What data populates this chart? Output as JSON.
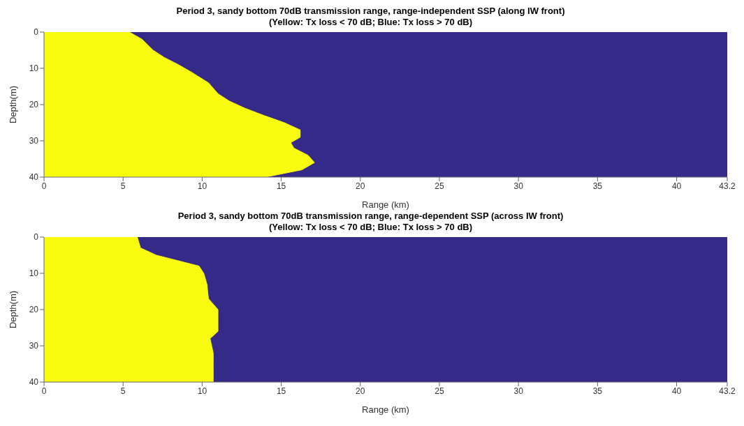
{
  "chart_data": [
    {
      "type": "area",
      "orientation": "horizontal",
      "title": "Period 3, sandy bottom 70dB transmission range, range-independent SSP (along IW front)",
      "subtitle": "(Yellow: Tx loss < 70 dB; Blue: Tx loss > 70 dB)",
      "xlabel": "Range (km)",
      "ylabel": "Depth(m)",
      "xlim": [
        0,
        43.2
      ],
      "xticks": [
        0,
        5,
        10,
        15,
        20,
        25,
        30,
        35,
        40,
        43.2
      ],
      "ylim": [
        40,
        0
      ],
      "yticks": [
        0,
        10,
        20,
        30,
        40
      ],
      "grid": false,
      "legend": false,
      "bands": [
        {
          "axis": "x",
          "from": 0,
          "to": 43.2,
          "color": "#352a87"
        }
      ],
      "series": [
        {
          "color": "#f9fb0e",
          "x": [
            0,
            2,
            5,
            7,
            9,
            11,
            14,
            17,
            19,
            21,
            23,
            25,
            27,
            29,
            30.5,
            32,
            34,
            36,
            38,
            40
          ],
          "values": [
            5.4,
            6.2,
            6.9,
            7.6,
            8.5,
            9.3,
            10.4,
            11,
            11.7,
            12.7,
            13.9,
            15.2,
            16.2,
            16.2,
            15.6,
            15.8,
            16.7,
            17.1,
            16.3,
            14
          ]
        }
      ]
    },
    {
      "type": "area",
      "orientation": "horizontal",
      "title": "Period 3, sandy bottom 70dB transmission range, range-dependent SSP (across IW front)",
      "subtitle": "(Yellow: Tx loss < 70 dB; Blue: Tx loss > 70 dB)",
      "xlabel": "Range (km)",
      "ylabel": "Depth(m)",
      "xlim": [
        0,
        43.2
      ],
      "xticks": [
        0,
        5,
        10,
        15,
        20,
        25,
        30,
        35,
        40,
        43.2
      ],
      "ylim": [
        40,
        0
      ],
      "yticks": [
        0,
        10,
        20,
        30,
        40
      ],
      "grid": false,
      "legend": false,
      "bands": [
        {
          "axis": "x",
          "from": 0,
          "to": 43.2,
          "color": "#352a87"
        }
      ],
      "series": [
        {
          "color": "#f9fb0e",
          "x": [
            0,
            3,
            5,
            8,
            10,
            13,
            17,
            20,
            23,
            26,
            28,
            32,
            36,
            40
          ],
          "values": [
            5.9,
            6.1,
            7.1,
            9.8,
            10.1,
            10.3,
            10.4,
            11,
            11,
            11,
            10.5,
            10.7,
            10.7,
            10.7
          ]
        }
      ]
    }
  ]
}
